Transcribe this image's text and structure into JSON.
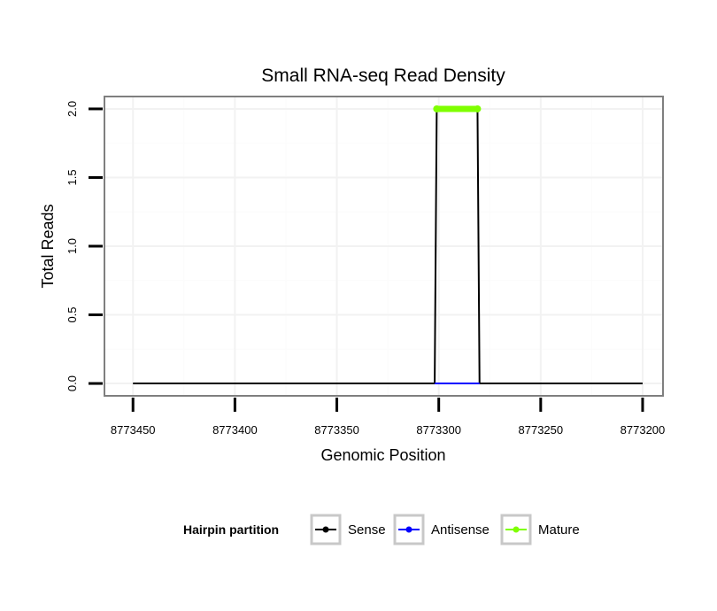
{
  "chart_data": {
    "type": "line",
    "title": "Small RNA-seq Read Density",
    "xlabel": "Genomic Position",
    "ylabel": "Total Reads",
    "x_reversed": true,
    "xlim": [
      8773464,
      8773190
    ],
    "ylim": [
      -0.09,
      2.09
    ],
    "x_ticks": [
      8773450,
      8773400,
      8773350,
      8773300,
      8773250,
      8773200
    ],
    "x_tick_labels": [
      "8773450",
      "8773400",
      "8773350",
      "8773300",
      "8773250",
      "8773200"
    ],
    "y_ticks": [
      0,
      0.5,
      1,
      1.5,
      2
    ],
    "y_tick_labels": [
      "0.0",
      "0.5",
      "1.0",
      "1.5",
      "2.0"
    ],
    "grid": true,
    "series": [
      {
        "name": "Sense",
        "color": "#000000",
        "points": [
          [
            8773450,
            0
          ],
          [
            8773302,
            0
          ],
          [
            8773301,
            2
          ],
          [
            8773281,
            2
          ],
          [
            8773280,
            0
          ],
          [
            8773200,
            0
          ]
        ]
      },
      {
        "name": "Antisense",
        "color": "#0000ff",
        "points": [
          [
            8773302,
            0
          ],
          [
            8773280,
            0
          ]
        ]
      },
      {
        "name": "Mature",
        "color": "#7fff00",
        "points": [
          [
            8773301,
            2
          ],
          [
            8773281,
            2
          ]
        ]
      }
    ],
    "legend": {
      "title": "Hairpin partition",
      "position": "bottom",
      "items": [
        {
          "label": "Sense",
          "color": "#000000"
        },
        {
          "label": "Antisense",
          "color": "#0000ff"
        },
        {
          "label": "Mature",
          "color": "#7fff00"
        }
      ]
    }
  }
}
